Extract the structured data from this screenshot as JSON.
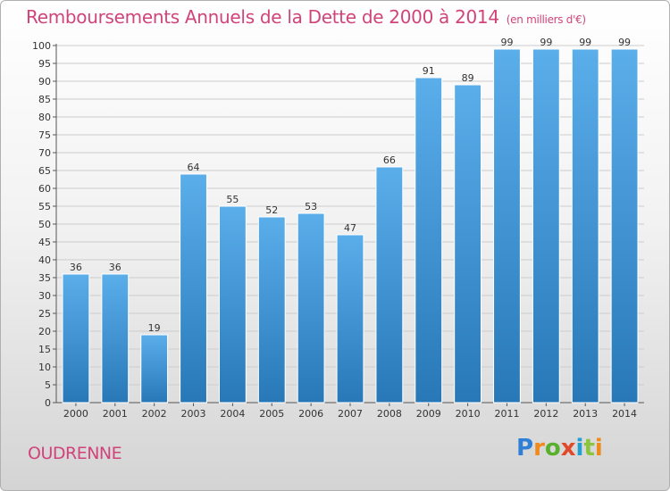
{
  "title": "Remboursements Annuels de la Dette de 2000 à 2014",
  "subtitle": "(en milliers d'€)",
  "commune": "OUDRENNE",
  "logo": {
    "text": "Proxiti",
    "letters": [
      "P",
      "r",
      "o",
      "x",
      "i",
      "t",
      "i"
    ],
    "colors": [
      "#2f7fd6",
      "#f08a1c",
      "#59b02c",
      "#e04a2a",
      "#1f9fd4",
      "#8bc53f",
      "#f08a1c"
    ]
  },
  "colors": {
    "accent": "#d0447a",
    "bar_top": "#5aaeea",
    "bar_bottom": "#2878b8",
    "grid": "#cccccc"
  },
  "chart_data": {
    "type": "bar",
    "title": "Remboursements Annuels de la Dette de 2000 à 2014",
    "xlabel": "",
    "ylabel": "(en milliers d'€)",
    "ylim": [
      0,
      100
    ],
    "ytick_step": 5,
    "grid": true,
    "categories": [
      "2000",
      "2001",
      "2002",
      "2003",
      "2004",
      "2005",
      "2006",
      "2007",
      "2008",
      "2009",
      "2010",
      "2011",
      "2012",
      "2013",
      "2014"
    ],
    "values": [
      36,
      36,
      19,
      64,
      55,
      52,
      53,
      47,
      66,
      91,
      89,
      99,
      99,
      99,
      99
    ]
  }
}
